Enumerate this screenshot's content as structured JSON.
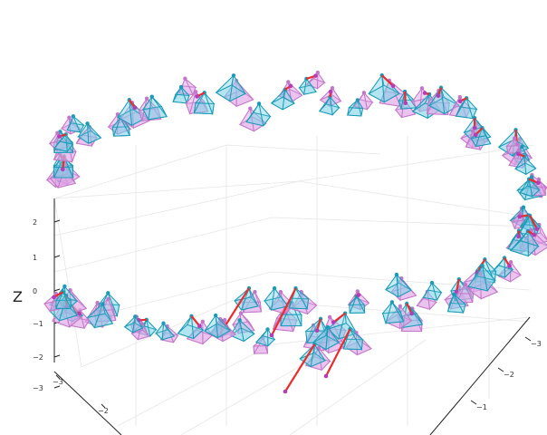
{
  "chart_data": {
    "type": "scatter",
    "title": "",
    "zlabel": "Z",
    "xlim": [
      -3,
      3
    ],
    "ylim": [
      -3,
      3
    ],
    "zlim": [
      -3,
      2.6
    ],
    "grid": true,
    "z_ticks": [
      "2",
      "1",
      "0",
      "−1",
      "−2",
      "−3"
    ],
    "x_ticks": [
      "−3",
      "−2"
    ],
    "y_ticks": [
      "−3",
      "−2",
      "−1"
    ],
    "colors": {
      "pose_edge": "#1a9bb8",
      "pose_fill": "#7fd3e6",
      "ref_edge": "#c377c9",
      "ref_fill": "#e2a8e8",
      "error_link": "#ee2b2b",
      "ref_point": "#b43cb4",
      "pose_point": "#1591b0"
    },
    "series": [
      {
        "name": "",
        "kind": "arc",
        "cx": 0,
        "cy": 0,
        "r": 2.5,
        "z_base": 0.2,
        "angles_deg": [
          -150,
          170,
          10
        ],
        "count": 60
      },
      {
        "name": "",
        "kind": "cluster",
        "count": 12
      }
    ]
  }
}
